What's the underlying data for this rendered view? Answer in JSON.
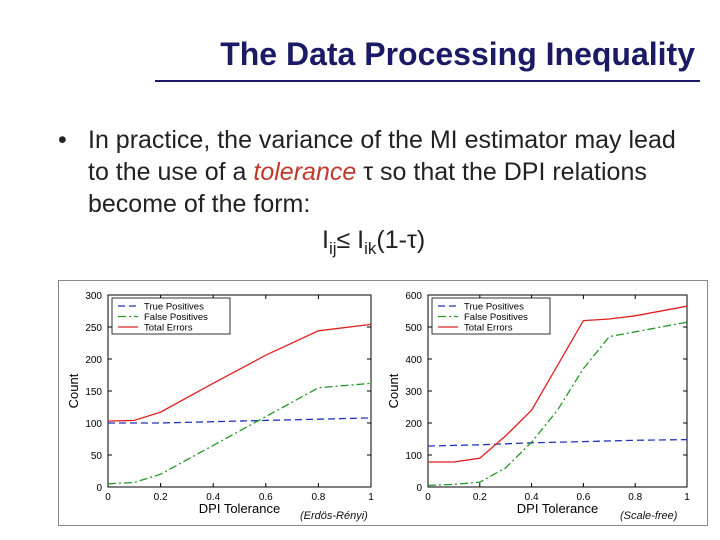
{
  "slide": {
    "title": "The Data Processing Inequality",
    "bullet_symbol": "•",
    "bullet_parts": {
      "before": "In practice, the variance of the MI estimator may lead to the use of a ",
      "emphasis": "tolerance",
      "after": " τ so that the DPI relations become of the form:"
    },
    "formula": {
      "lhs": "I",
      "lhs_sub": "ij",
      "op": "≤ I",
      "rhs_sub": "ik",
      "tail": "(1-τ)"
    }
  },
  "chart_data": [
    {
      "type": "line",
      "caption": "(Erdös-Rényi)",
      "xlabel": "DPI Tolerance",
      "ylabel": "Count",
      "xlim": [
        0,
        1
      ],
      "ylim": [
        0,
        300
      ],
      "xticks": [
        0,
        0.2,
        0.4,
        0.6,
        0.8,
        1
      ],
      "xtick_labels": [
        "0",
        "0.2",
        "0.4",
        "0.6",
        "0.8",
        "1"
      ],
      "yticks": [
        0,
        50,
        100,
        150,
        200,
        250,
        300
      ],
      "ytick_labels": [
        "0",
        "50",
        "100",
        "150",
        "200",
        "250",
        "300"
      ],
      "legend_position": "top-left",
      "series": [
        {
          "name": "True Positives",
          "color": "#2233bb",
          "dash": "dash",
          "x": [
            0,
            0.2,
            0.4,
            0.6,
            0.8,
            1
          ],
          "y": [
            100,
            100,
            102,
            104,
            106,
            108
          ]
        },
        {
          "name": "False Positives",
          "color": "#229922",
          "dash": "dashdot",
          "x": [
            0,
            0.1,
            0.2,
            0.4,
            0.6,
            0.8,
            1
          ],
          "y": [
            5,
            7,
            20,
            65,
            110,
            155,
            162
          ]
        },
        {
          "name": "Total Errors",
          "color": "#dd2222",
          "dash": "solid",
          "x": [
            0,
            0.1,
            0.2,
            0.4,
            0.6,
            0.8,
            1
          ],
          "y": [
            103,
            104,
            117,
            162,
            206,
            244,
            254
          ]
        }
      ]
    },
    {
      "type": "line",
      "caption": "(Scale-free)",
      "xlabel": "DPI Tolerance",
      "ylabel": "Count",
      "xlim": [
        0,
        1
      ],
      "ylim": [
        0,
        600
      ],
      "xticks": [
        0,
        0.2,
        0.4,
        0.6,
        0.8,
        1
      ],
      "xtick_labels": [
        "0",
        "0.2",
        "0.4",
        "0.6",
        "0.8",
        "1"
      ],
      "yticks": [
        0,
        100,
        200,
        300,
        400,
        500,
        600
      ],
      "ytick_labels": [
        "0",
        "100",
        "200",
        "300",
        "400",
        "500",
        "600"
      ],
      "legend_position": "top-left",
      "series": [
        {
          "name": "True Positives",
          "color": "#2233bb",
          "dash": "dash",
          "x": [
            0,
            0.2,
            0.4,
            0.6,
            0.8,
            1
          ],
          "y": [
            128,
            132,
            138,
            142,
            146,
            148
          ]
        },
        {
          "name": "False Positives",
          "color": "#229922",
          "dash": "dashdot",
          "x": [
            0,
            0.1,
            0.2,
            0.3,
            0.4,
            0.5,
            0.6,
            0.7,
            0.8,
            1
          ],
          "y": [
            5,
            8,
            15,
            60,
            140,
            240,
            370,
            470,
            485,
            515
          ]
        },
        {
          "name": "Total Errors",
          "color": "#dd2222",
          "dash": "solid",
          "x": [
            0,
            0.1,
            0.2,
            0.3,
            0.4,
            0.5,
            0.6,
            0.7,
            0.8,
            1
          ],
          "y": [
            78,
            78,
            90,
            160,
            240,
            380,
            520,
            525,
            535,
            565
          ]
        }
      ]
    }
  ]
}
